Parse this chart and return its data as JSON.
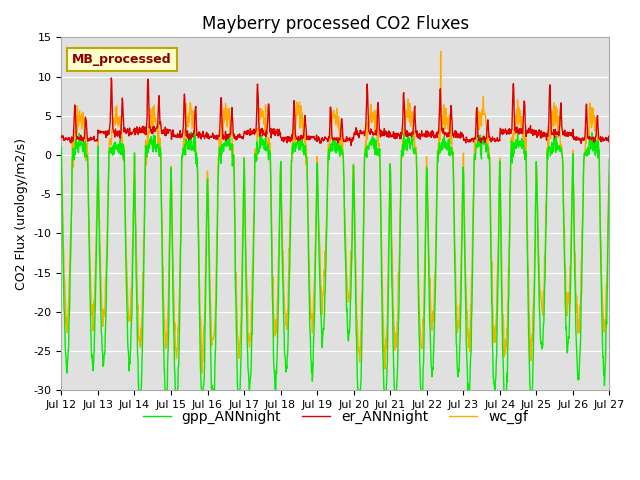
{
  "title": "Mayberry processed CO2 Fluxes",
  "ylabel": "CO2 Flux (urology/m2/s)",
  "ylim": [
    -30,
    15
  ],
  "xtick_labels": [
    "Jul 12",
    "Jul 13",
    "Jul 14",
    "Jul 15",
    "Jul 16",
    "Jul 17",
    "Jul 18",
    "Jul 19",
    "Jul 20",
    "Jul 21",
    "Jul 22",
    "Jul 23",
    "Jul 24",
    "Jul 25",
    "Jul 26",
    "Jul 27"
  ],
  "bg_color": "#e0e0e0",
  "fig_bg_color": "#ffffff",
  "legend_label": "MB_processed",
  "legend_bg": "#ffffcc",
  "legend_edge": "#bbaa00",
  "line_gpp_color": "#00ee00",
  "line_er_color": "#dd0000",
  "line_wc_color": "#ffaa00",
  "line_width": 1.0,
  "title_fontsize": 12,
  "axis_fontsize": 9,
  "tick_fontsize": 8,
  "legend_fontsize": 10,
  "n_points_per_day": 96,
  "n_days": 15,
  "yticks": [
    -30,
    -25,
    -20,
    -15,
    -10,
    -5,
    0,
    5,
    10,
    15
  ]
}
